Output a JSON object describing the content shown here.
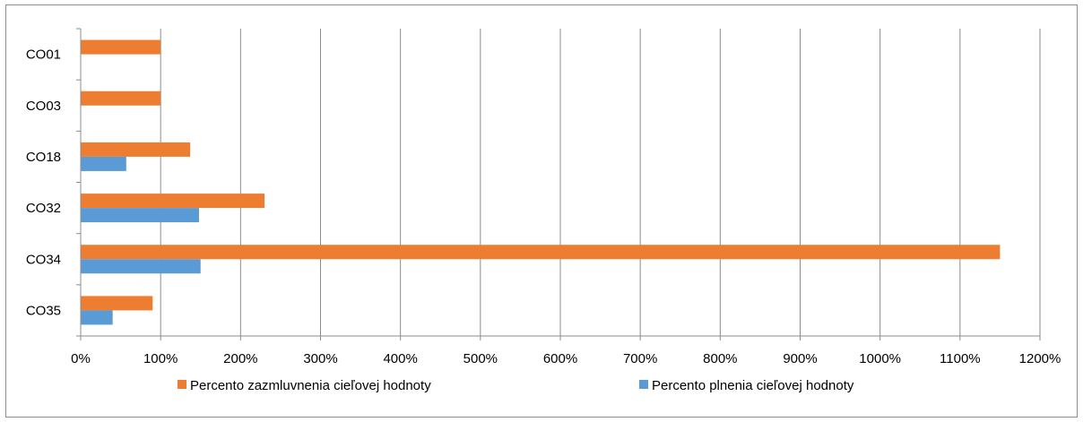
{
  "chart_data": {
    "type": "bar",
    "orientation": "horizontal",
    "categories": [
      "CO01",
      "CO03",
      "CO18",
      "CO32",
      "CO34",
      "CO35"
    ],
    "series": [
      {
        "name": "Percento zazmluvnenia cieľovej hodnoty",
        "color": "#ED7D31",
        "values": [
          100,
          100,
          137,
          230,
          1150,
          90
        ]
      },
      {
        "name": "Percento plnenia cieľovej hodnoty",
        "color": "#5B9BD5",
        "values": [
          0,
          0,
          57,
          148,
          150,
          40
        ]
      }
    ],
    "x_ticks": [
      "0%",
      "100%",
      "200%",
      "300%",
      "400%",
      "500%",
      "600%",
      "700%",
      "800%",
      "900%",
      "1000%",
      "1100%",
      "1200%"
    ],
    "xlim": [
      0,
      1200
    ],
    "x_unit": "%",
    "grid": "vertical",
    "legend_position": "bottom",
    "title": "",
    "xlabel": "",
    "ylabel": ""
  }
}
